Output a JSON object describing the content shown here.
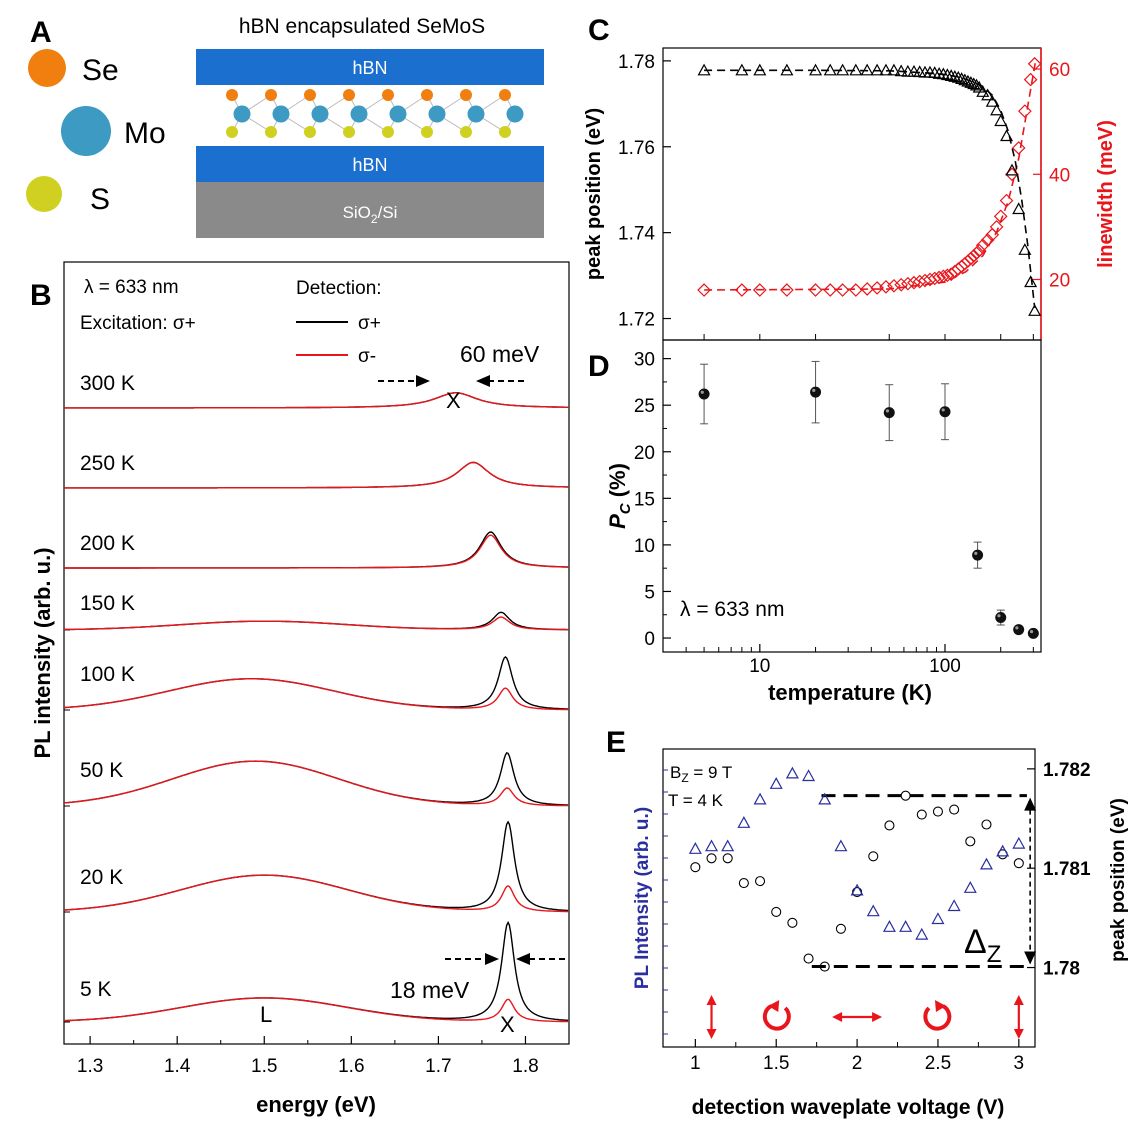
{
  "colors": {
    "black": "#000000",
    "red": "#e8161b",
    "blue": "#2a2fa0",
    "hbn": "#1a6fcf",
    "substrate": "#8a8a8a",
    "se": "#f07f10",
    "mo": "#3d9ac2",
    "s": "#d0d020"
  },
  "panel_a": {
    "letter": "A",
    "title": "hBN encapsulated SeMoS",
    "legend": [
      {
        "atom": "Se",
        "color": "#f07f10"
      },
      {
        "atom": "Mo",
        "color": "#3d9ac2"
      },
      {
        "atom": "S",
        "color": "#d0d020"
      }
    ],
    "layers": {
      "top": "hBN",
      "bottom": "hBN",
      "substrate_main": "SiO",
      "substrate_sub": "2",
      "substrate_tail": "/Si"
    }
  },
  "chart_data": [
    {
      "panel": "B",
      "type": "line",
      "xlabel": "energy (eV)",
      "ylabel": "PL intensity (arb. u.)",
      "xlim": [
        1.27,
        1.85
      ],
      "xticks": [
        1.3,
        1.4,
        1.5,
        1.6,
        1.7,
        1.8
      ],
      "xtick_labels": [
        "1.3",
        "1.4",
        "1.5",
        "1.6",
        "1.7",
        "1.8"
      ],
      "annotations": {
        "wavelength": "λ = 633 nm",
        "excitation": "Excitation: σ+",
        "detection": "Detection:",
        "legend_plus": "σ+",
        "legend_minus": "σ-",
        "width_top": "60 meV",
        "width_bottom": "18 meV",
        "peak_x_top": "X",
        "peak_x_bottom": "X",
        "peak_l": "L"
      },
      "series": [
        {
          "temperature": "300 K",
          "L_amp": 0.0,
          "L_center": 1.49,
          "X_center": 1.72,
          "X_width": 0.06,
          "X_amp_plus": 0.95,
          "X_amp_minus": 0.95
        },
        {
          "temperature": "250 K",
          "L_amp": 0.0,
          "L_center": 1.49,
          "X_center": 1.74,
          "X_width": 0.045,
          "X_amp_plus": 1.6,
          "X_amp_minus": 1.6
        },
        {
          "temperature": "200 K",
          "L_amp": 0.0,
          "L_center": 1.49,
          "X_center": 1.76,
          "X_width": 0.03,
          "X_amp_plus": 2.25,
          "X_amp_minus": 2.05
        },
        {
          "temperature": "150 K",
          "L_amp": 0.55,
          "L_center": 1.5,
          "X_center": 1.772,
          "X_width": 0.024,
          "X_amp_plus": 1.1,
          "X_amp_minus": 0.8
        },
        {
          "temperature": "100 K",
          "L_amp": 1.95,
          "L_center": 1.485,
          "X_center": 1.777,
          "X_width": 0.02,
          "X_amp_plus": 3.3,
          "X_amp_minus": 1.35
        },
        {
          "temperature": "50 K",
          "L_amp": 2.8,
          "L_center": 1.49,
          "X_center": 1.779,
          "X_width": 0.019,
          "X_amp_plus": 3.3,
          "X_amp_minus": 1.1
        },
        {
          "temperature": "20 K",
          "L_amp": 2.3,
          "L_center": 1.5,
          "X_center": 1.78,
          "X_width": 0.018,
          "X_amp_plus": 5.6,
          "X_amp_minus": 1.6
        },
        {
          "temperature": "5 K",
          "L_amp": 1.5,
          "L_center": 1.5,
          "X_center": 1.78,
          "X_width": 0.018,
          "X_amp_plus": 6.2,
          "X_amp_minus": 1.4
        }
      ]
    },
    {
      "panel": "C",
      "type": "scatter",
      "xlabel": "",
      "ylabel": "peak position (eV)",
      "y2label": "linewidth (meV)",
      "xscale": "log",
      "xlim": [
        3,
        330
      ],
      "ylim": [
        1.715,
        1.783
      ],
      "yticks": [
        1.72,
        1.74,
        1.76,
        1.78
      ],
      "ytick_labels": [
        "1.72",
        "1.74",
        "1.76",
        "1.78"
      ],
      "y2lim": [
        8.5,
        64
      ],
      "y2ticks": [
        20,
        40,
        60
      ],
      "y2tick_labels": [
        "20",
        "40",
        "60"
      ],
      "peak_position": {
        "x": [
          5,
          8,
          10,
          14,
          20,
          24,
          28,
          33,
          38,
          43,
          48,
          53,
          58,
          63,
          68,
          73,
          78,
          83,
          88,
          93,
          98,
          103,
          108,
          113,
          118,
          123,
          128,
          133,
          138,
          143,
          148,
          153,
          160,
          170,
          180,
          190,
          200,
          215,
          230,
          250,
          270,
          290,
          305
        ],
        "y": [
          1.7778,
          1.7778,
          1.7778,
          1.7778,
          1.7778,
          1.7778,
          1.7778,
          1.7778,
          1.7778,
          1.7778,
          1.7778,
          1.7778,
          1.7776,
          1.7775,
          1.7775,
          1.7774,
          1.7773,
          1.7773,
          1.7772,
          1.777,
          1.7769,
          1.7767,
          1.7765,
          1.7763,
          1.7761,
          1.7758,
          1.7755,
          1.7752,
          1.7749,
          1.7746,
          1.7743,
          1.7738,
          1.7728,
          1.772,
          1.7705,
          1.7685,
          1.766,
          1.7625,
          1.7545,
          1.7455,
          1.736,
          1.7285,
          1.7218
        ]
      },
      "linewidth": {
        "x": [
          5,
          8,
          10,
          14,
          20,
          24,
          28,
          33,
          38,
          43,
          48,
          53,
          58,
          63,
          68,
          73,
          78,
          83,
          88,
          93,
          98,
          103,
          108,
          113,
          118,
          123,
          128,
          133,
          138,
          143,
          148,
          153,
          160,
          170,
          180,
          190,
          200,
          215,
          230,
          250,
          270,
          290,
          305
        ],
        "y": [
          18,
          18,
          18,
          18,
          18,
          18,
          18,
          18,
          18.2,
          18.4,
          18.6,
          18.8,
          19,
          19.2,
          19.4,
          19.6,
          19.8,
          20,
          20.2,
          20.4,
          20.6,
          20.8,
          21,
          21.5,
          22,
          22.5,
          23,
          23.5,
          24,
          24.5,
          25,
          25.5,
          26.5,
          27.5,
          28.5,
          30,
          32,
          35,
          40,
          45,
          52,
          58,
          61
        ]
      },
      "peak_fit": {
        "x": [
          5,
          20,
          50,
          80,
          100,
          120,
          140,
          160,
          180,
          200,
          220,
          240,
          260,
          280,
          305
        ],
        "y": [
          1.7778,
          1.7778,
          1.7777,
          1.7772,
          1.7768,
          1.7762,
          1.7752,
          1.774,
          1.772,
          1.7685,
          1.7635,
          1.7565,
          1.7475,
          1.737,
          1.7225
        ]
      },
      "width_fit": {
        "x": [
          5,
          50,
          100,
          130,
          160,
          190,
          220,
          250,
          280,
          310
        ],
        "y": [
          18,
          18.2,
          19.5,
          21.5,
          24.5,
          29,
          35,
          43,
          53,
          62
        ]
      }
    },
    {
      "panel": "D",
      "type": "scatter",
      "xlabel": "temperature (K)",
      "ylabel_main": "P",
      "ylabel_sub": "C",
      "ylabel_tail": " (%)",
      "xscale": "log",
      "xlim": [
        3,
        330
      ],
      "xticks": [
        10,
        100
      ],
      "xtick_labels": [
        "10",
        "100"
      ],
      "ylim": [
        -1.5,
        32
      ],
      "yticks": [
        0,
        5,
        10,
        15,
        20,
        25,
        30
      ],
      "ytick_labels": [
        "0",
        "5",
        "10",
        "15",
        "20",
        "25",
        "30"
      ],
      "annotation": "λ = 633 nm",
      "x": [
        5,
        20,
        50,
        100,
        150,
        200,
        250,
        300
      ],
      "y": [
        26.2,
        26.4,
        24.2,
        24.3,
        8.9,
        2.2,
        0.9,
        0.5
      ],
      "yerr": [
        3.2,
        3.3,
        3.0,
        3.0,
        1.4,
        0.8,
        0.35,
        0.3
      ]
    },
    {
      "panel": "E",
      "type": "scatter",
      "xlabel": "detection waveplate voltage (V)",
      "ylabel": "PL Intensity (arb. u.)",
      "y2label": "peak position (eV)",
      "xlim": [
        0.8,
        3.1
      ],
      "xticks": [
        1,
        1.5,
        2,
        2.5,
        3
      ],
      "xtick_labels": [
        "1",
        "1.5",
        "2",
        "2.5",
        "3"
      ],
      "y2lim": [
        1.7792,
        1.7822
      ],
      "y2ticks": [
        1.78,
        1.781,
        1.782
      ],
      "y2tick_labels": [
        "1.78",
        "1.781",
        "1.782"
      ],
      "annotations": {
        "field_main": "B",
        "field_sub": "Z",
        "field_tail": " = 9 T",
        "temperature": "T = 4 K",
        "delta_main": "Δ",
        "delta_sub": "Z"
      },
      "intensity": {
        "x": [
          1.0,
          1.1,
          1.2,
          1.3,
          1.4,
          1.5,
          1.6,
          1.7,
          1.8,
          1.9,
          2.0,
          2.1,
          2.2,
          2.3,
          2.4,
          2.5,
          2.6,
          2.7,
          2.8,
          2.9,
          3.0
        ],
        "y": [
          0.62,
          0.63,
          0.63,
          0.72,
          0.81,
          0.87,
          0.91,
          0.9,
          0.81,
          0.63,
          0.46,
          0.38,
          0.32,
          0.32,
          0.29,
          0.35,
          0.4,
          0.47,
          0.56,
          0.61,
          0.64
        ]
      },
      "peak_position": {
        "x": [
          1.0,
          1.1,
          1.2,
          1.3,
          1.4,
          1.5,
          1.6,
          1.7,
          1.8,
          1.9,
          2.0,
          2.1,
          2.2,
          2.3,
          2.4,
          2.5,
          2.6,
          2.7,
          2.8,
          2.9,
          3.0
        ],
        "y": [
          1.78101,
          1.7811,
          1.7811,
          1.78085,
          1.78087,
          1.78056,
          1.78045,
          1.78009,
          1.78001,
          1.78039,
          1.78076,
          1.78112,
          1.78143,
          1.78173,
          1.78154,
          1.78157,
          1.78159,
          1.78127,
          1.78144,
          1.78114,
          1.78105
        ]
      },
      "splitting_levels": {
        "upper": 1.78173,
        "lower": 1.78001
      },
      "polarization_markers": [
        {
          "x": 1.1,
          "kind": "vertical"
        },
        {
          "x": 1.5,
          "kind": "circle-cw"
        },
        {
          "x": 2.0,
          "kind": "horizontal"
        },
        {
          "x": 2.5,
          "kind": "circle-ccw"
        },
        {
          "x": 3.0,
          "kind": "vertical"
        }
      ]
    }
  ],
  "panel_letters": {
    "b": "B",
    "c": "C",
    "d": "D",
    "e": "E"
  }
}
